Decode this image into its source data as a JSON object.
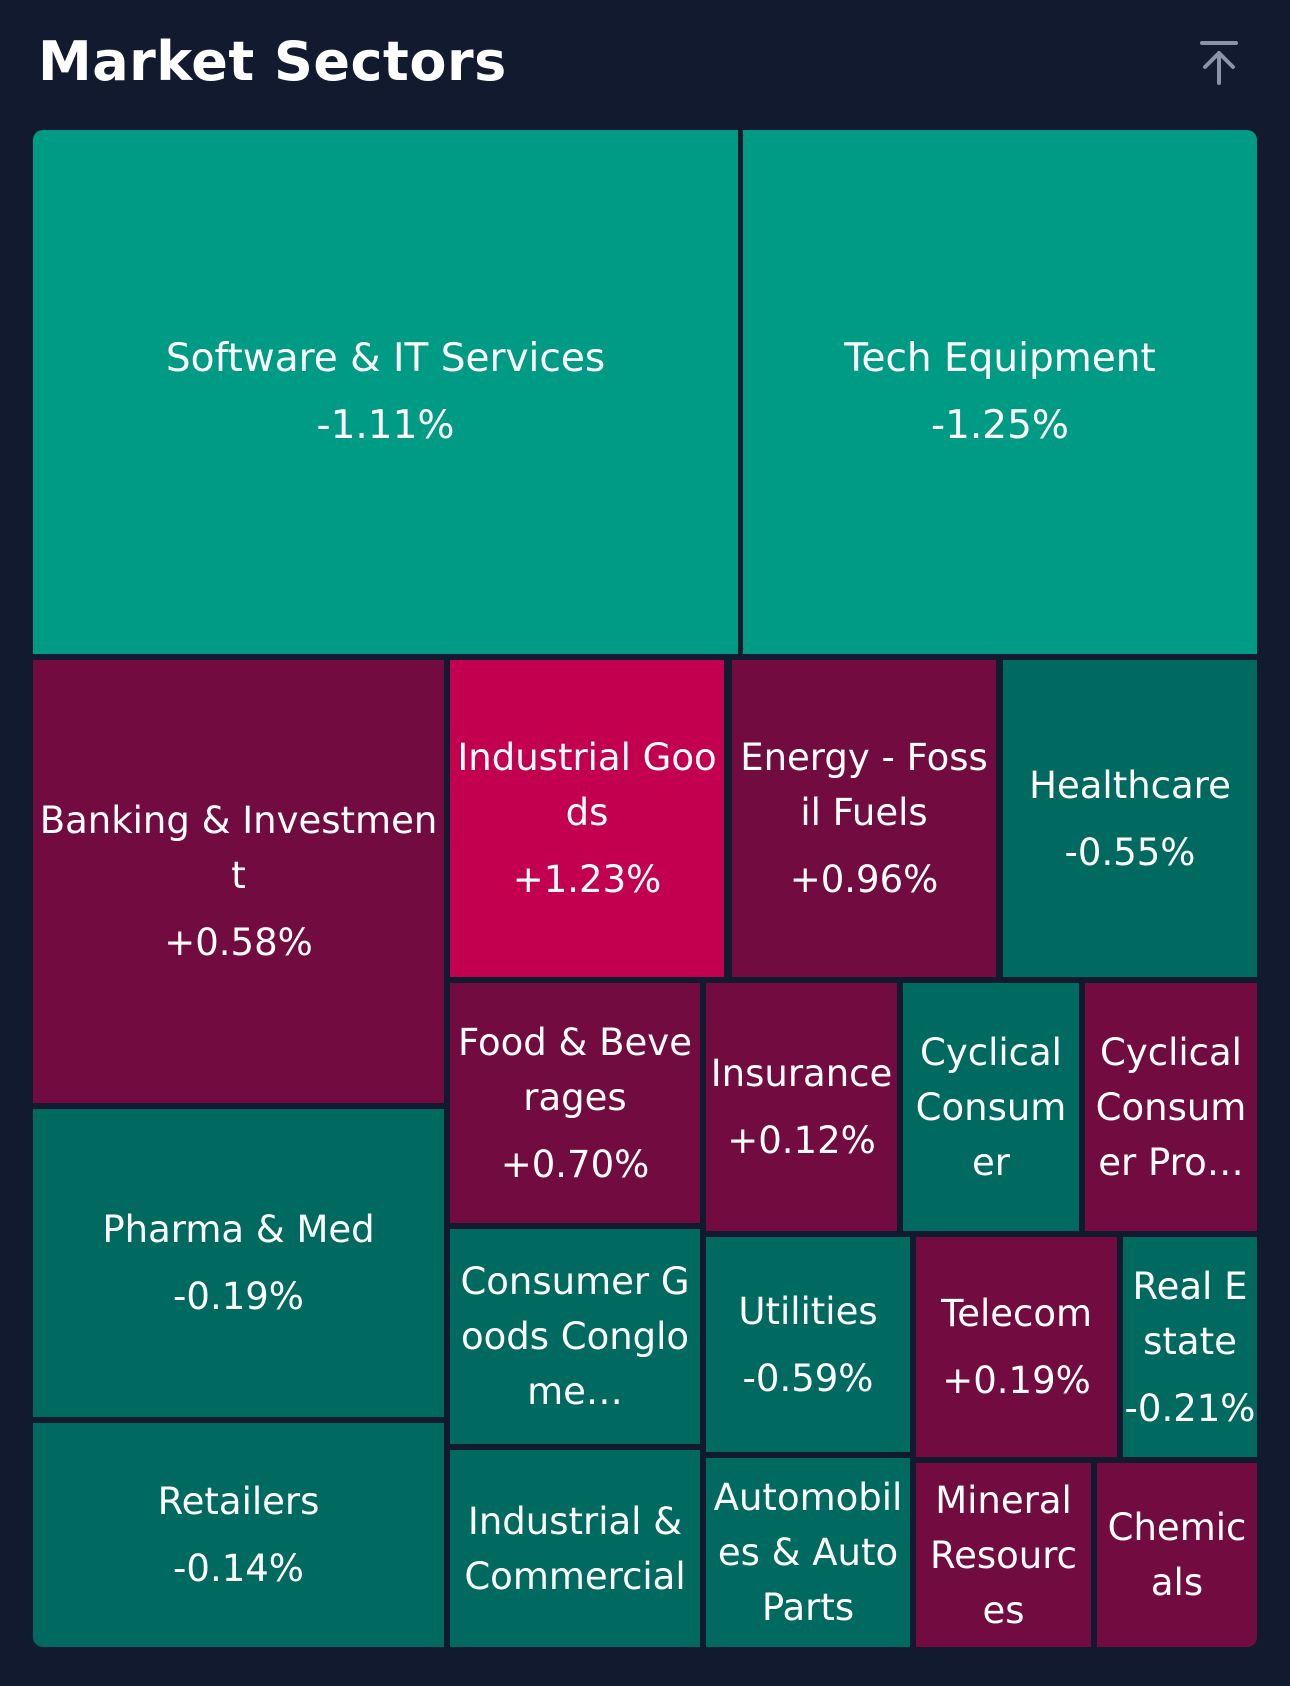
{
  "header": {
    "title": "Market Sectors",
    "back_to_top_icon": "arrow-up-to-line-icon"
  },
  "colors": {
    "background": "#121a30",
    "strong_green": "#009b84",
    "green": "#006a60",
    "maroon": "#720c40",
    "magenta": "#c2004f"
  },
  "chart_data": {
    "type": "heatmap",
    "subtype": "treemap",
    "value_unit": "% change",
    "sectors": [
      {
        "name": "Software & IT Services",
        "label": "Software & IT Services",
        "change": -1.11,
        "change_label": "-1.11%",
        "color": "#009b84"
      },
      {
        "name": "Tech Equipment",
        "label": "Tech Equipment",
        "change": -1.25,
        "change_label": "-1.25%",
        "color": "#009b84"
      },
      {
        "name": "Banking & Investment",
        "label": "Banking & Investment",
        "change": 0.58,
        "change_label": "+0.58%",
        "color": "#720c40"
      },
      {
        "name": "Industrial Goods",
        "label": "Industrial Goods",
        "change": 1.23,
        "change_label": "+1.23%",
        "color": "#c2004f"
      },
      {
        "name": "Energy - Fossil Fuels",
        "label": "Energy - Fossil Fuels",
        "change": 0.96,
        "change_label": "+0.96%",
        "color": "#720c40"
      },
      {
        "name": "Healthcare",
        "label": "Healthcare",
        "change": -0.55,
        "change_label": "-0.55%",
        "color": "#006a60"
      },
      {
        "name": "Pharma & Med",
        "label": "Pharma & Med",
        "change": -0.19,
        "change_label": "-0.19%",
        "color": "#006a60"
      },
      {
        "name": "Retailers",
        "label": "Retailers",
        "change": -0.14,
        "change_label": "-0.14%",
        "color": "#006a60"
      },
      {
        "name": "Food & Beverages",
        "label": "Food & Beverages",
        "change": 0.7,
        "change_label": "+0.70%",
        "color": "#720c40"
      },
      {
        "name": "Insurance",
        "label": "Insurance",
        "change": 0.12,
        "change_label": "+0.12%",
        "color": "#720c40"
      },
      {
        "name": "Cyclical Consumer",
        "label": "Cyclical Consumer",
        "change": null,
        "change_label": "",
        "color": "#006a60"
      },
      {
        "name": "Cyclical Consumer Pro…",
        "label": "Cyclical Consumer Pro…",
        "change": null,
        "change_label": "",
        "color": "#720c40"
      },
      {
        "name": "Consumer Goods Conglome…",
        "label": "Consumer Goods Conglome…",
        "change": null,
        "change_label": "",
        "color": "#006a60"
      },
      {
        "name": "Utilities",
        "label": "Utilities",
        "change": -0.59,
        "change_label": "-0.59%",
        "color": "#006a60"
      },
      {
        "name": "Telecom",
        "label": "Telecom",
        "change": 0.19,
        "change_label": "+0.19%",
        "color": "#720c40"
      },
      {
        "name": "Real Estate",
        "label": "Real Estate",
        "change": -0.21,
        "change_label": "-0.21%",
        "color": "#006a60"
      },
      {
        "name": "Industrial & Commercial",
        "label": "Industrial & Commercial",
        "change": null,
        "change_label": "",
        "color": "#006a60"
      },
      {
        "name": "Automobiles & Auto Parts",
        "label": "Automobiles & Auto Parts",
        "change": null,
        "change_label": "",
        "color": "#006a60"
      },
      {
        "name": "Mineral Resources",
        "label": "Mineral Resources",
        "change": null,
        "change_label": "",
        "color": "#720c40"
      },
      {
        "name": "Chemicals",
        "label": "Chemicals",
        "change": null,
        "change_label": "",
        "color": "#720c40"
      }
    ]
  }
}
